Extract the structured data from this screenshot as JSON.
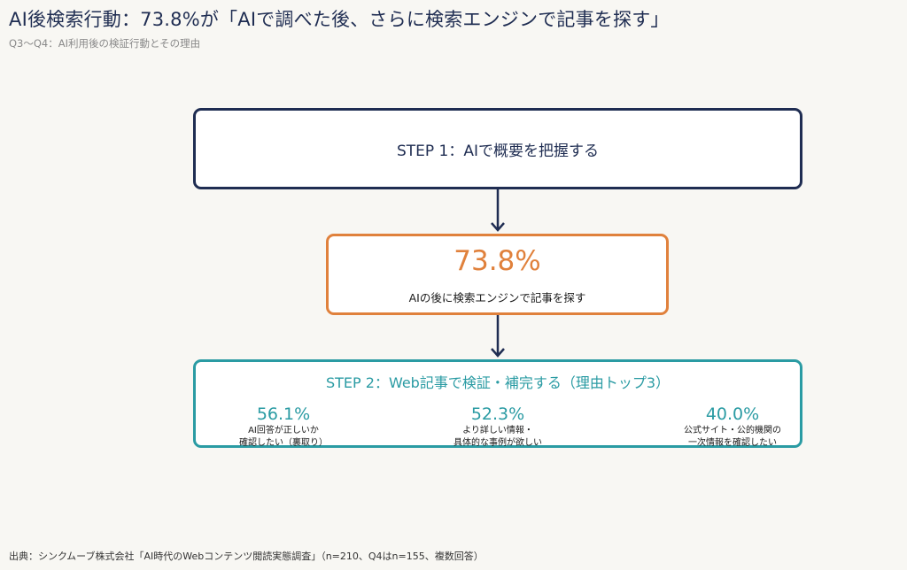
{
  "header": {
    "title": "AI後検索行動：73.8%が「AIで調べた後、さらに検索エンジンで記事を探す」",
    "subtitle": "Q3〜Q4：AI利用後の検証行動とその理由"
  },
  "step1": {
    "label": "STEP 1：AIで概要を把握する"
  },
  "middle": {
    "percentage": "73.8%",
    "description": "AIの後に検索エンジンで記事を探す"
  },
  "step2": {
    "label": "STEP 2：Web記事で検証・補完する（理由トップ3）",
    "reasons": [
      {
        "percentage": "56.1%",
        "line1": "AI回答が正しいか",
        "line2": "確認したい（裏取り）"
      },
      {
        "percentage": "52.3%",
        "line1": "より詳しい情報・",
        "line2": "具体的な事例が欲しい"
      },
      {
        "percentage": "40.0%",
        "line1": "公式サイト・公的機関の",
        "line2": "一次情報を確認したい"
      }
    ]
  },
  "footer": {
    "source": "出典：シンクムーブ株式会社「AI時代のWebコンテンツ閲読実態調査」（n=210、Q4はn=155、複数回答）"
  },
  "colors": {
    "navy": "#1f2d52",
    "orange": "#e0813c",
    "teal": "#2a9ba3",
    "background": "#f8f7f3"
  }
}
